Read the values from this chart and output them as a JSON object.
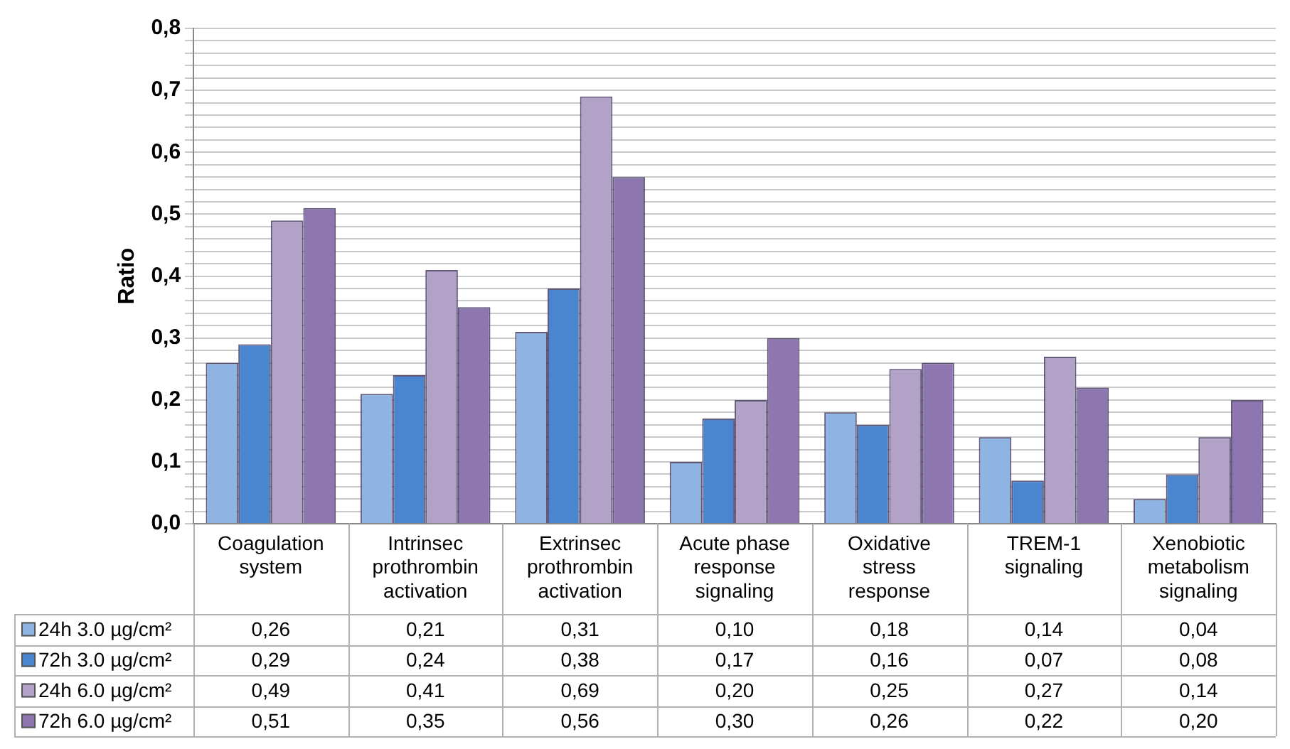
{
  "chart_data": {
    "type": "bar",
    "ylabel": "Ratio",
    "categories": [
      "Coagulation system",
      "Intrinsec prothrombin activation",
      "Extrinsec prothrombin activation",
      "Acute phase response signaling",
      "Oxidative stress response",
      "TREM-1 signaling",
      "Xenobiotic metabolism signaling"
    ],
    "series": [
      {
        "name": "24h 3.0 µg/cm²",
        "color": "#8db4e2",
        "values": [
          0.26,
          0.21,
          0.31,
          0.1,
          0.18,
          0.14,
          0.04
        ],
        "value_labels": [
          "0,26",
          "0,21",
          "0,31",
          "0,10",
          "0,18",
          "0,14",
          "0,04"
        ]
      },
      {
        "name": "72h 3.0 µg/cm²",
        "color": "#4a86d0",
        "values": [
          0.29,
          0.24,
          0.38,
          0.17,
          0.16,
          0.07,
          0.08
        ],
        "value_labels": [
          "0,29",
          "0,24",
          "0,38",
          "0,17",
          "0,16",
          "0,07",
          "0,08"
        ]
      },
      {
        "name": "24h 6.0 µg/cm²",
        "color": "#b3a2c7",
        "values": [
          0.49,
          0.41,
          0.69,
          0.2,
          0.25,
          0.27,
          0.14
        ],
        "value_labels": [
          "0,49",
          "0,41",
          "0,69",
          "0,20",
          "0,25",
          "0,27",
          "0,14"
        ]
      },
      {
        "name": "72h 6.0 µg/cm²",
        "color": "#8e76b0",
        "values": [
          0.51,
          0.35,
          0.56,
          0.3,
          0.26,
          0.22,
          0.2
        ],
        "value_labels": [
          "0,51",
          "0,35",
          "0,56",
          "0,30",
          "0,26",
          "0,22",
          "0,20"
        ]
      }
    ],
    "ylim": [
      0,
      0.8
    ],
    "yticks": [
      {
        "value": 0,
        "label": "0,0"
      },
      {
        "value": 0.02,
        "label": null
      },
      {
        "value": 0.04,
        "label": null
      },
      {
        "value": 0.06,
        "label": null
      },
      {
        "value": 0.08,
        "label": null
      },
      {
        "value": 0.1,
        "label": "0,1"
      },
      {
        "value": 0.12,
        "label": null
      },
      {
        "value": 0.14,
        "label": null
      },
      {
        "value": 0.16,
        "label": null
      },
      {
        "value": 0.18,
        "label": null
      },
      {
        "value": 0.2,
        "label": "0,2"
      },
      {
        "value": 0.22,
        "label": null
      },
      {
        "value": 0.24,
        "label": null
      },
      {
        "value": 0.26,
        "label": null
      },
      {
        "value": 0.28,
        "label": null
      },
      {
        "value": 0.3,
        "label": "0,3"
      },
      {
        "value": 0.32,
        "label": null
      },
      {
        "value": 0.34,
        "label": null
      },
      {
        "value": 0.36,
        "label": null
      },
      {
        "value": 0.38,
        "label": null
      },
      {
        "value": 0.4,
        "label": "0,4"
      },
      {
        "value": 0.42,
        "label": null
      },
      {
        "value": 0.44,
        "label": null
      },
      {
        "value": 0.46,
        "label": null
      },
      {
        "value": 0.48,
        "label": null
      },
      {
        "value": 0.5,
        "label": "0,5"
      },
      {
        "value": 0.52,
        "label": null
      },
      {
        "value": 0.54,
        "label": null
      },
      {
        "value": 0.56,
        "label": null
      },
      {
        "value": 0.58,
        "label": null
      },
      {
        "value": 0.6,
        "label": "0,6"
      },
      {
        "value": 0.62,
        "label": null
      },
      {
        "value": 0.64,
        "label": null
      },
      {
        "value": 0.66,
        "label": null
      },
      {
        "value": 0.68,
        "label": null
      },
      {
        "value": 0.7,
        "label": "0,7"
      },
      {
        "value": 0.72,
        "label": null
      },
      {
        "value": 0.74,
        "label": null
      },
      {
        "value": 0.76,
        "label": null
      },
      {
        "value": 0.78,
        "label": null
      },
      {
        "value": 0.8,
        "label": "0,8"
      }
    ],
    "grid": "y",
    "legend": "bottom left"
  }
}
